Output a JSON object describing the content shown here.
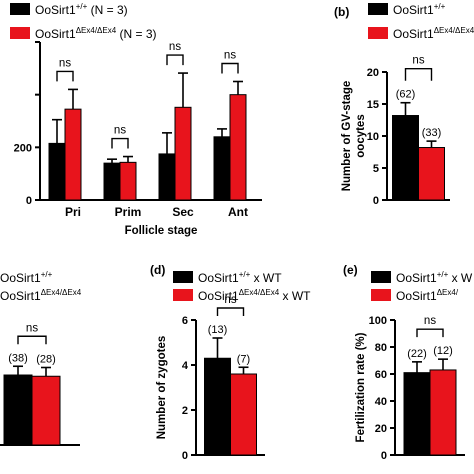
{
  "colors": {
    "black": "#000000",
    "red": "#e8141c"
  },
  "charts": [
    {
      "panel": "",
      "legend": [
        {
          "main": "OoSirt1",
          "sup": "+/+",
          "tail": " (N = 3)",
          "color": "#000000"
        },
        {
          "main": "OoSirt1",
          "sup": "ΔEx4/ΔEx4",
          "tail": " (N = 3)",
          "color": "#e8141c"
        }
      ],
      "xlabel": "Follicle stage",
      "ylabel": "",
      "ylim": [
        0,
        600
      ],
      "yticks": [
        0,
        200
      ],
      "yticks_note": "visible tick labels only",
      "bracket_label": "ns"
    },
    {
      "panel": "(b)",
      "legend": [
        {
          "main": "OoSirt1",
          "sup": "+/+",
          "tail": "",
          "color": "#000000"
        },
        {
          "main": "OoSirt1",
          "sup": "ΔEx4/ΔEx4",
          "tail": "",
          "color": "#e8141c"
        }
      ],
      "xlabel": "",
      "ylabel": "Number of GV-stage oocytes",
      "ylim": [
        0,
        20
      ],
      "yticks": [
        0,
        5,
        10,
        15,
        20
      ],
      "bracket_label": "ns"
    },
    {
      "panel": "",
      "legend": [
        {
          "main": "OoSirt1",
          "sup": "+/+",
          "tail": "",
          "color": "#000000"
        },
        {
          "main": "OoSirt1",
          "sup": "ΔEx4/ΔEx4",
          "tail": "",
          "color": "#e8141c"
        }
      ],
      "xlabel": "",
      "ylabel": "",
      "ylim": [
        0,
        10
      ],
      "yticks": [],
      "bracket_label": "ns"
    },
    {
      "panel": "(d)",
      "legend": [
        {
          "main": "OoSirt1",
          "sup": "+/+",
          "tail": " x WT",
          "color": "#000000"
        },
        {
          "main": "OoSirt1",
          "sup": "ΔEx4/ΔEx4",
          "tail": " x WT",
          "color": "#e8141c"
        }
      ],
      "xlabel": "",
      "ylabel": "Number of zygotes",
      "ylim": [
        0,
        6
      ],
      "yticks": [
        0,
        2,
        4,
        6
      ],
      "bracket_label": "ns"
    },
    {
      "panel": "(e)",
      "legend": [
        {
          "main": "OoSirt1",
          "sup": "+/+",
          "tail": " x W",
          "color": "#000000"
        },
        {
          "main": "OoSirt1",
          "sup": "ΔEx4/",
          "tail": "",
          "color": "#e8141c"
        }
      ],
      "xlabel": "",
      "ylabel": "Fertilization rate (%)",
      "ylim": [
        0,
        100
      ],
      "yticks": [
        0,
        20,
        40,
        60,
        80,
        100
      ],
      "bracket_label": "ns"
    }
  ],
  "chart_data": [
    {
      "type": "bar",
      "categories": [
        "Pri",
        "Prim",
        "Sec",
        "Ant"
      ],
      "series": [
        {
          "name": "OoSirt1+/+ (N = 3)",
          "values": [
            215,
            140,
            175,
            240
          ],
          "errors": [
            90,
            15,
            80,
            30
          ]
        },
        {
          "name": "OoSirt1ΔEx4/ΔEx4 (N = 3)",
          "values": [
            345,
            143,
            352,
            400
          ],
          "errors": [
            75,
            22,
            130,
            50
          ]
        }
      ],
      "annotations": [
        "ns",
        "ns",
        "ns",
        "ns"
      ],
      "xlabel": "Follicle stage",
      "ylim": [
        0,
        600
      ]
    },
    {
      "type": "bar",
      "categories": [
        ""
      ],
      "series": [
        {
          "name": "OoSirt1+/+",
          "values": [
            13.2
          ],
          "errors": [
            2.0
          ],
          "labels": [
            "(62)"
          ]
        },
        {
          "name": "OoSirt1ΔEx4/ΔEx4",
          "values": [
            8.2
          ],
          "errors": [
            1.0
          ],
          "labels": [
            "(33)"
          ]
        }
      ],
      "annotations": [
        "ns"
      ],
      "ylabel": "Number of GV-stage oocytes",
      "ylim": [
        0,
        20
      ]
    },
    {
      "type": "bar",
      "categories": [
        ""
      ],
      "series": [
        {
          "name": "OoSirt1+/+",
          "values": [
            5.6
          ],
          "errors": [
            0.7
          ],
          "labels": [
            "(38)"
          ]
        },
        {
          "name": "OoSirt1ΔEx4/ΔEx4",
          "values": [
            5.5
          ],
          "errors": [
            0.7
          ],
          "labels": [
            "(28)"
          ]
        }
      ],
      "annotations": [
        "ns"
      ],
      "ylim": [
        0,
        10
      ]
    },
    {
      "type": "bar",
      "categories": [
        ""
      ],
      "series": [
        {
          "name": "OoSirt1+/+ x WT",
          "values": [
            4.3
          ],
          "errors": [
            0.9
          ],
          "labels": [
            "(13)"
          ]
        },
        {
          "name": "OoSirt1ΔEx4/ΔEx4 x WT",
          "values": [
            3.6
          ],
          "errors": [
            0.3
          ],
          "labels": [
            "(7)"
          ]
        }
      ],
      "annotations": [
        "ns"
      ],
      "ylabel": "Number of zygotes",
      "ylim": [
        0,
        6
      ]
    },
    {
      "type": "bar",
      "categories": [
        ""
      ],
      "series": [
        {
          "name": "OoSirt1+/+ x W",
          "values": [
            61
          ],
          "errors": [
            8
          ],
          "labels": [
            "(22)"
          ]
        },
        {
          "name": "OoSirt1ΔEx4/",
          "values": [
            63
          ],
          "errors": [
            8
          ],
          "labels": [
            "(12)"
          ]
        }
      ],
      "annotations": [
        "ns"
      ],
      "ylabel": "Fertilization rate (%)",
      "ylim": [
        0,
        100
      ]
    }
  ]
}
